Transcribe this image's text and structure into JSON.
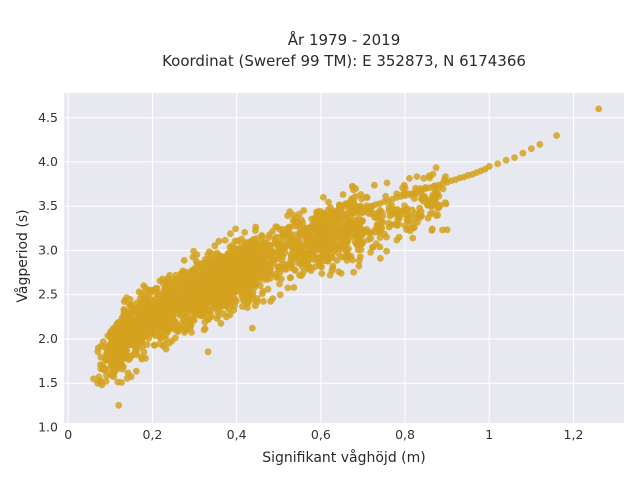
{
  "chart_data": {
    "type": "scatter",
    "title": "År 1979 - 2019",
    "subtitle": "Koordinat (Sweref 99 TM): E 352873, N 6174366",
    "xlabel": "Signifikant våghöjd (m)",
    "ylabel": "Vågperiod (s)",
    "xlim": [
      -0.01,
      1.32
    ],
    "ylim": [
      1.05,
      4.78
    ],
    "x_ticks": [
      0,
      0.2,
      0.4,
      0.6,
      0.8,
      1.0,
      1.2
    ],
    "x_tick_labels": [
      "0",
      "0,2",
      "0,4",
      "0,6",
      "0,8",
      "1",
      "1,2"
    ],
    "y_ticks": [
      1.0,
      1.5,
      2.0,
      2.5,
      3.0,
      3.5,
      4.0,
      4.5
    ],
    "y_tick_labels": [
      "1.0",
      "1.5",
      "2.0",
      "2.5",
      "3.0",
      "3.5",
      "4.0",
      "4.5"
    ],
    "grid": true,
    "legend": "none",
    "marker_color": "#d4a21f",
    "background": "#e8e8f0",
    "series": [
      {
        "x": [
          0.06,
          0.07,
          0.08,
          0.09,
          0.1,
          0.11,
          0.12,
          0.12,
          0.13,
          0.14,
          0.15,
          0.16,
          0.17,
          0.18,
          0.19,
          0.2,
          0.21,
          0.22,
          0.23,
          0.24,
          0.25,
          0.26,
          0.27,
          0.28,
          0.29,
          0.3,
          0.31,
          0.32,
          0.33,
          0.34,
          0.35,
          0.36,
          0.37,
          0.38,
          0.39,
          0.4,
          0.41,
          0.42,
          0.43,
          0.44,
          0.45,
          0.46,
          0.47,
          0.48,
          0.49,
          0.5,
          0.51,
          0.52,
          0.53,
          0.54,
          0.55,
          0.56,
          0.57,
          0.58,
          0.59,
          0.6,
          0.61,
          0.62,
          0.63,
          0.64,
          0.65,
          0.66,
          0.67,
          0.68,
          0.69,
          0.7,
          0.71,
          0.72,
          0.73,
          0.74,
          0.75,
          0.76,
          0.77,
          0.78,
          0.79,
          0.8,
          0.81,
          0.82,
          0.83,
          0.84,
          0.85,
          0.86,
          0.87,
          0.88,
          0.89,
          0.9,
          0.91,
          0.92,
          0.93,
          0.94,
          0.95,
          0.96,
          0.97,
          0.98,
          0.99,
          1.0,
          1.02,
          1.04,
          1.06,
          1.08,
          1.1,
          1.12,
          1.16,
          1.26
        ],
        "y": [
          1.55,
          1.5,
          1.48,
          1.52,
          1.6,
          1.75,
          1.85,
          1.25,
          1.95,
          2.05,
          2.12,
          2.2,
          2.25,
          2.3,
          2.35,
          2.38,
          2.42,
          2.45,
          2.48,
          2.52,
          2.55,
          2.58,
          2.6,
          2.62,
          2.66,
          2.68,
          2.7,
          2.73,
          2.75,
          2.78,
          2.8,
          2.82,
          2.84,
          2.86,
          2.88,
          2.9,
          2.92,
          2.94,
          2.96,
          2.98,
          3.0,
          3.02,
          3.04,
          3.06,
          3.08,
          3.1,
          3.12,
          3.14,
          3.16,
          3.18,
          3.2,
          3.22,
          3.24,
          3.26,
          3.28,
          3.3,
          3.32,
          3.33,
          3.35,
          3.37,
          3.38,
          3.4,
          3.42,
          3.43,
          3.45,
          3.47,
          3.48,
          3.5,
          3.52,
          3.53,
          3.55,
          3.56,
          3.58,
          3.6,
          3.61,
          3.62,
          3.64,
          3.65,
          3.67,
          3.68,
          3.7,
          3.71,
          3.73,
          3.74,
          3.76,
          3.77,
          3.79,
          3.8,
          3.82,
          3.83,
          3.85,
          3.86,
          3.88,
          3.9,
          3.92,
          3.95,
          3.98,
          4.02,
          4.05,
          4.1,
          4.15,
          4.2,
          4.3,
          4.6
        ]
      }
    ]
  }
}
